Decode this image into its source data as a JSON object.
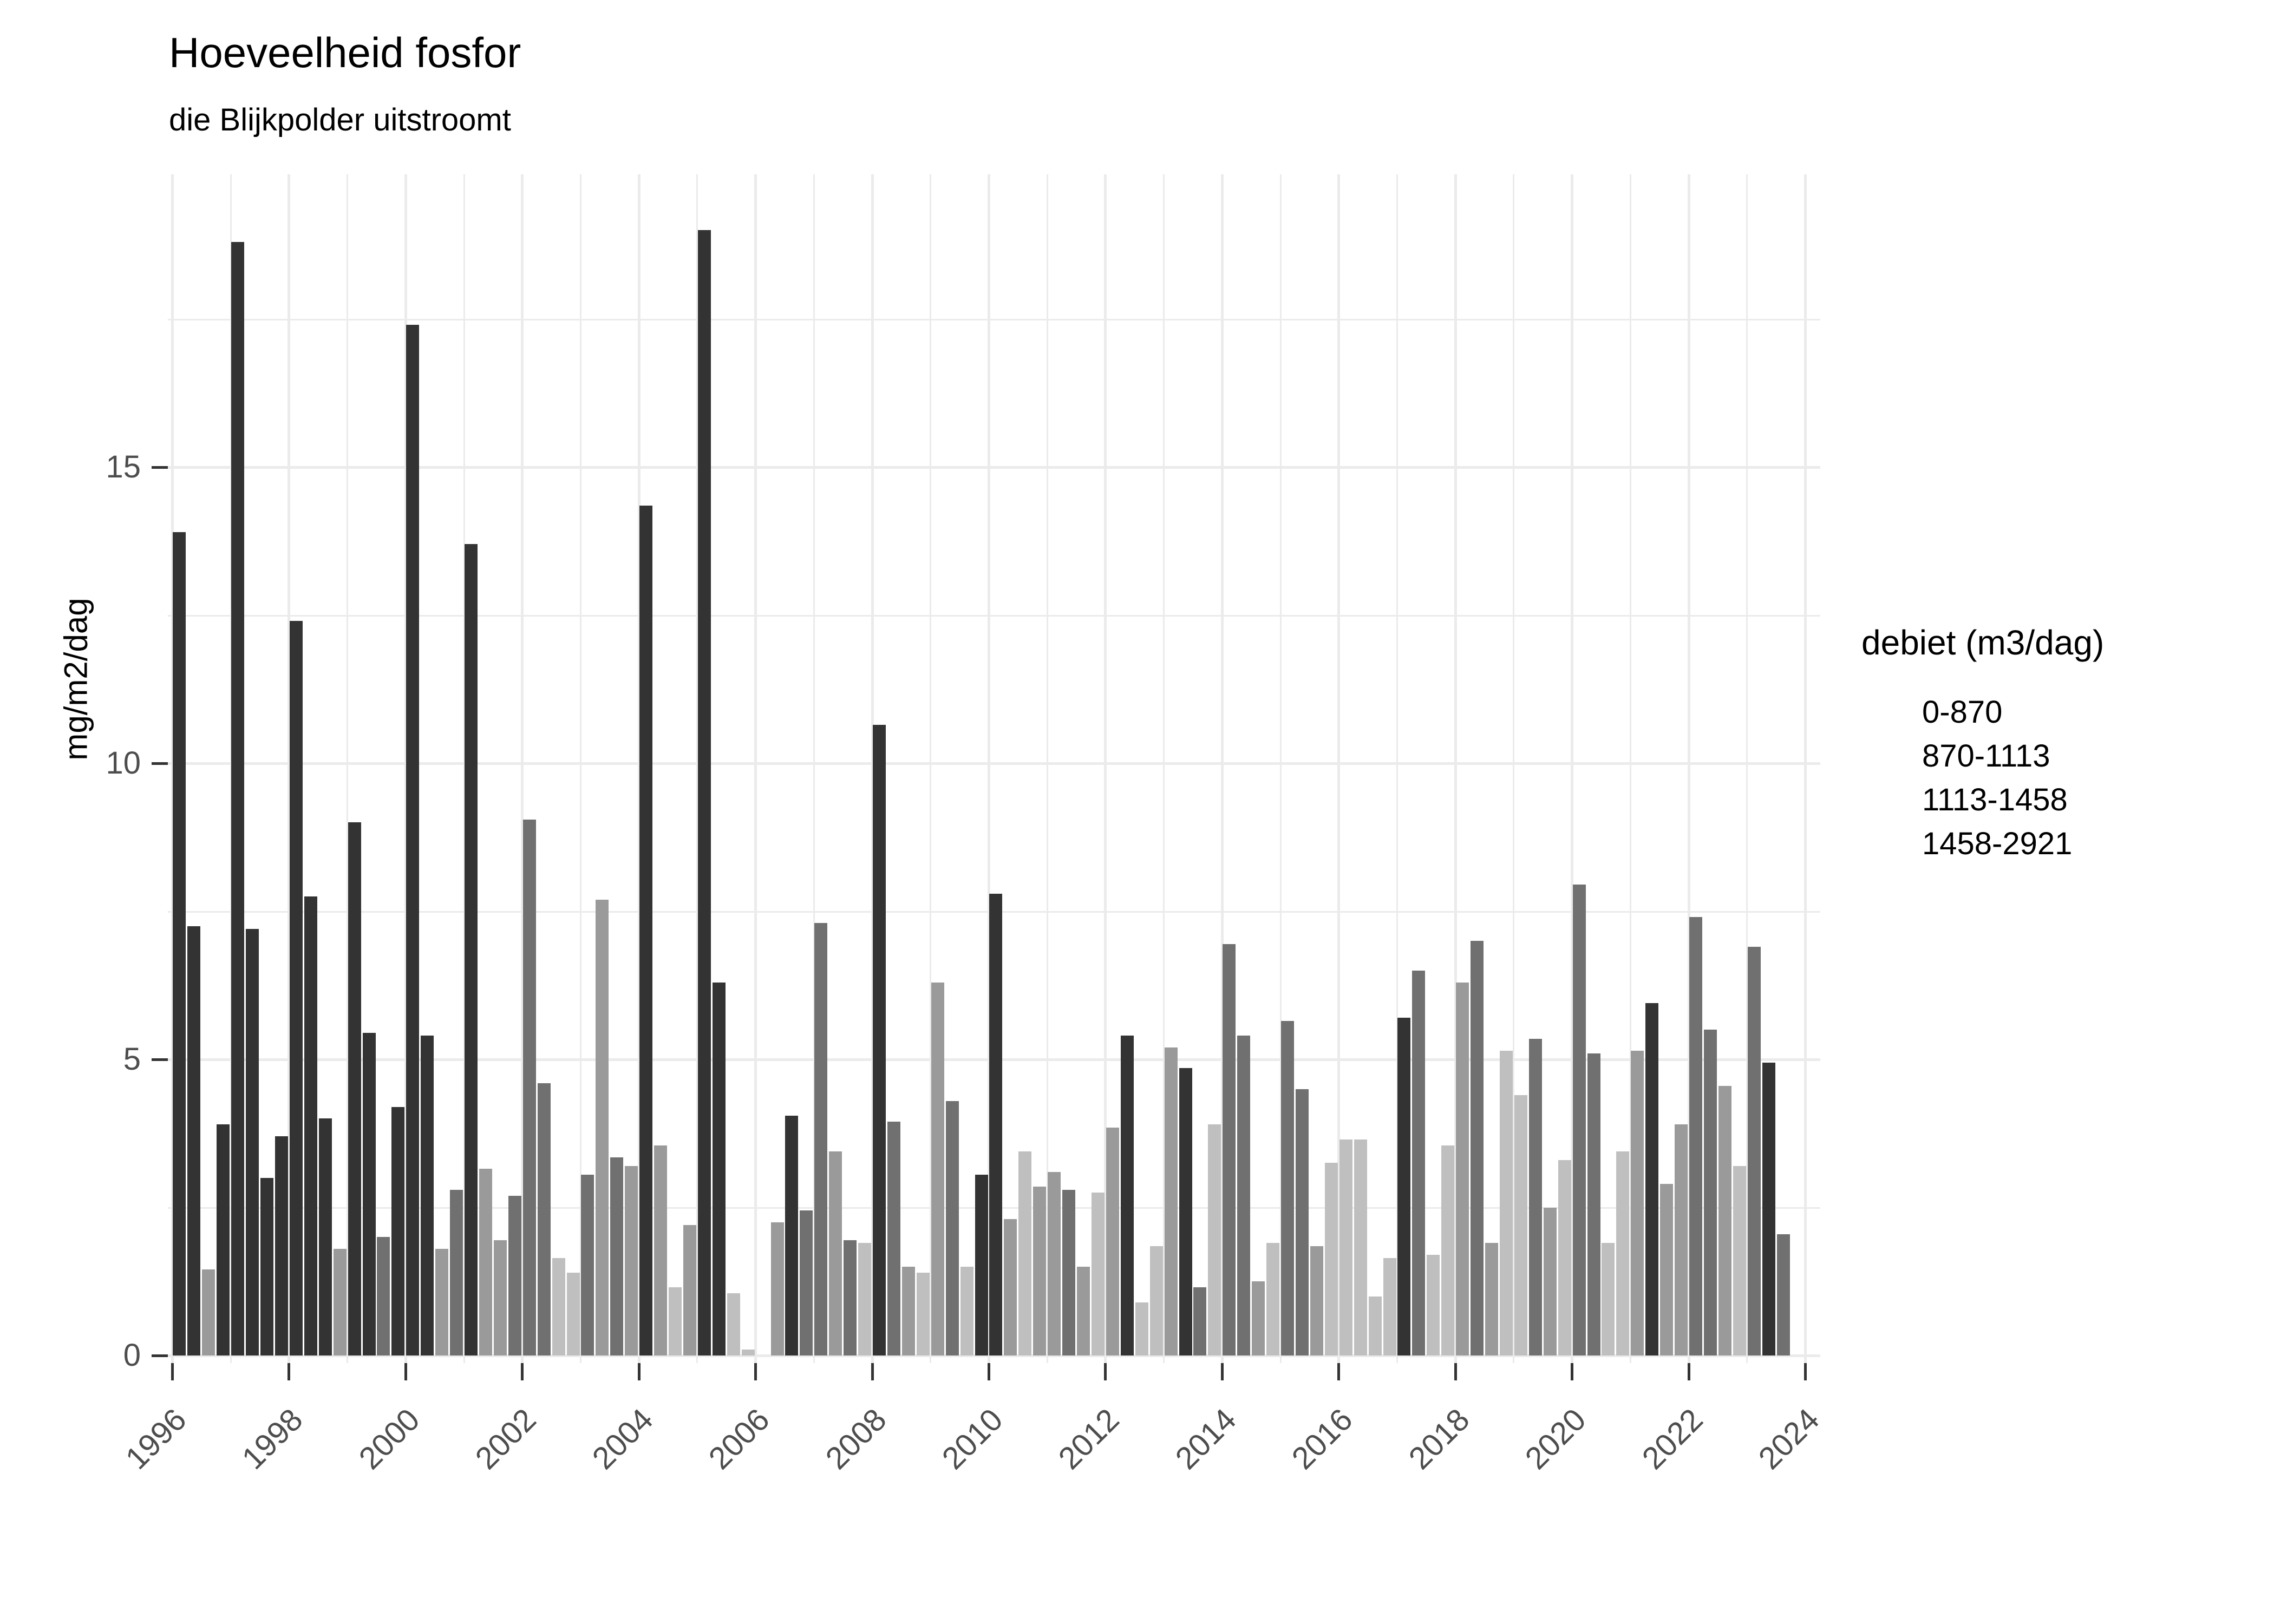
{
  "chart_data": {
    "type": "bar",
    "title": "Hoeveelheid fosfor",
    "subtitle": "die Blijkpolder uitstroomt",
    "ylabel": "mg/m2/dag",
    "xlabel": "",
    "ylim": [
      0,
      19.9
    ],
    "yticks": [
      0,
      5,
      10,
      15
    ],
    "yticks_minor": [
      2.5,
      7.5,
      12.5,
      17.5
    ],
    "xticks": [
      1996,
      1998,
      2000,
      2002,
      2004,
      2006,
      2008,
      2010,
      2012,
      2014,
      2016,
      2018,
      2020,
      2022,
      2024
    ],
    "grid": "on",
    "legend_position": "right",
    "legend": {
      "title": "debiet (m3/dag)",
      "entries": [
        {
          "label": "0-870",
          "color": "#bfbfbf"
        },
        {
          "label": "870-1113",
          "color": "#9a9a9a"
        },
        {
          "label": "1113-1458",
          "color": "#707070"
        },
        {
          "label": "1458-2921",
          "color": "#333333"
        }
      ]
    },
    "note": "grouped quarterly bars per year; c = index into legend entries (debiet class); null = no bar",
    "years": [
      {
        "year": 1996,
        "quarters": [
          {
            "v": 13.9,
            "c": 3
          },
          {
            "v": 7.25,
            "c": 3
          },
          {
            "v": 1.45,
            "c": 1
          },
          {
            "v": 3.9,
            "c": 3
          }
        ]
      },
      {
        "year": 1997,
        "quarters": [
          {
            "v": 18.8,
            "c": 3
          },
          {
            "v": 7.2,
            "c": 3
          },
          {
            "v": 3.0,
            "c": 3
          },
          {
            "v": 3.7,
            "c": 3
          }
        ]
      },
      {
        "year": 1998,
        "quarters": [
          {
            "v": 12.4,
            "c": 3
          },
          {
            "v": 7.75,
            "c": 3
          },
          {
            "v": 4.0,
            "c": 3
          },
          {
            "v": 1.8,
            "c": 1
          }
        ]
      },
      {
        "year": 1999,
        "quarters": [
          {
            "v": 9.0,
            "c": 3
          },
          {
            "v": 5.45,
            "c": 3
          },
          {
            "v": 2.0,
            "c": 2
          },
          {
            "v": 4.2,
            "c": 3
          }
        ]
      },
      {
        "year": 2000,
        "quarters": [
          {
            "v": 17.4,
            "c": 3
          },
          {
            "v": 5.4,
            "c": 3
          },
          {
            "v": 1.8,
            "c": 1
          },
          {
            "v": 2.8,
            "c": 2
          }
        ]
      },
      {
        "year": 2001,
        "quarters": [
          {
            "v": 13.7,
            "c": 3
          },
          {
            "v": 3.15,
            "c": 1
          },
          {
            "v": 1.95,
            "c": 1
          },
          {
            "v": 2.7,
            "c": 2
          }
        ]
      },
      {
        "year": 2002,
        "quarters": [
          {
            "v": 9.05,
            "c": 2
          },
          {
            "v": 4.6,
            "c": 2
          },
          {
            "v": 1.65,
            "c": 0
          },
          {
            "v": 1.4,
            "c": 0
          }
        ]
      },
      {
        "year": 2003,
        "quarters": [
          {
            "v": 3.05,
            "c": 2
          },
          {
            "v": 7.7,
            "c": 1
          },
          {
            "v": 3.35,
            "c": 2
          },
          {
            "v": 3.2,
            "c": 1
          }
        ]
      },
      {
        "year": 2004,
        "quarters": [
          {
            "v": 14.35,
            "c": 3
          },
          {
            "v": 3.55,
            "c": 1
          },
          {
            "v": 1.15,
            "c": 0
          },
          {
            "v": 2.2,
            "c": 1
          }
        ]
      },
      {
        "year": 2005,
        "quarters": [
          {
            "v": 19.0,
            "c": 3
          },
          {
            "v": 6.3,
            "c": 3
          },
          {
            "v": 1.05,
            "c": 0
          },
          {
            "v": 0.1,
            "c": 0
          }
        ]
      },
      {
        "year": 2006,
        "quarters": [
          null,
          {
            "v": 2.25,
            "c": 1
          },
          {
            "v": 4.05,
            "c": 3
          },
          {
            "v": 2.45,
            "c": 2
          }
        ]
      },
      {
        "year": 2007,
        "quarters": [
          {
            "v": 7.3,
            "c": 2
          },
          {
            "v": 3.45,
            "c": 1
          },
          {
            "v": 1.95,
            "c": 2
          },
          {
            "v": 1.9,
            "c": 0
          }
        ]
      },
      {
        "year": 2008,
        "quarters": [
          {
            "v": 10.65,
            "c": 3
          },
          {
            "v": 3.95,
            "c": 2
          },
          {
            "v": 1.5,
            "c": 1
          },
          {
            "v": 1.4,
            "c": 0
          }
        ]
      },
      {
        "year": 2009,
        "quarters": [
          {
            "v": 6.3,
            "c": 1
          },
          {
            "v": 4.3,
            "c": 2
          },
          {
            "v": 1.5,
            "c": 0
          },
          {
            "v": 3.05,
            "c": 3
          }
        ]
      },
      {
        "year": 2010,
        "quarters": [
          {
            "v": 7.8,
            "c": 3
          },
          {
            "v": 2.3,
            "c": 1
          },
          {
            "v": 3.45,
            "c": 0
          },
          {
            "v": 2.85,
            "c": 1
          }
        ]
      },
      {
        "year": 2011,
        "quarters": [
          {
            "v": 3.1,
            "c": 1
          },
          {
            "v": 2.8,
            "c": 2
          },
          {
            "v": 1.5,
            "c": 1
          },
          {
            "v": 2.75,
            "c": 0
          }
        ]
      },
      {
        "year": 2012,
        "quarters": [
          {
            "v": 3.85,
            "c": 1
          },
          {
            "v": 5.4,
            "c": 3
          },
          {
            "v": 0.9,
            "c": 0
          },
          {
            "v": 1.85,
            "c": 0
          }
        ]
      },
      {
        "year": 2013,
        "quarters": [
          {
            "v": 5.2,
            "c": 1
          },
          {
            "v": 4.85,
            "c": 3
          },
          {
            "v": 1.15,
            "c": 2
          },
          {
            "v": 3.9,
            "c": 0
          }
        ]
      },
      {
        "year": 2014,
        "quarters": [
          {
            "v": 6.95,
            "c": 2
          },
          {
            "v": 5.4,
            "c": 2
          },
          {
            "v": 1.25,
            "c": 1
          },
          {
            "v": 1.9,
            "c": 0
          }
        ]
      },
      {
        "year": 2015,
        "quarters": [
          {
            "v": 5.65,
            "c": 2
          },
          {
            "v": 4.5,
            "c": 2
          },
          {
            "v": 1.85,
            "c": 1
          },
          {
            "v": 3.25,
            "c": 0
          }
        ]
      },
      {
        "year": 2016,
        "quarters": [
          {
            "v": 3.65,
            "c": 0
          },
          {
            "v": 3.65,
            "c": 0
          },
          {
            "v": 1.0,
            "c": 0
          },
          {
            "v": 1.65,
            "c": 0
          }
        ]
      },
      {
        "year": 2017,
        "quarters": [
          {
            "v": 5.7,
            "c": 3
          },
          {
            "v": 6.5,
            "c": 2
          },
          {
            "v": 1.7,
            "c": 0
          },
          {
            "v": 3.55,
            "c": 0
          }
        ]
      },
      {
        "year": 2018,
        "quarters": [
          {
            "v": 6.3,
            "c": 1
          },
          {
            "v": 7.0,
            "c": 2
          },
          {
            "v": 1.9,
            "c": 1
          },
          {
            "v": 5.15,
            "c": 0
          }
        ]
      },
      {
        "year": 2019,
        "quarters": [
          {
            "v": 4.4,
            "c": 0
          },
          {
            "v": 5.35,
            "c": 2
          },
          {
            "v": 2.5,
            "c": 1
          },
          {
            "v": 3.3,
            "c": 0
          }
        ]
      },
      {
        "year": 2020,
        "quarters": [
          {
            "v": 7.95,
            "c": 2
          },
          {
            "v": 5.1,
            "c": 2
          },
          {
            "v": 1.9,
            "c": 0
          },
          {
            "v": 3.45,
            "c": 0
          }
        ]
      },
      {
        "year": 2021,
        "quarters": [
          {
            "v": 5.15,
            "c": 1
          },
          {
            "v": 5.95,
            "c": 3
          },
          {
            "v": 2.9,
            "c": 1
          },
          {
            "v": 3.9,
            "c": 1
          }
        ]
      },
      {
        "year": 2022,
        "quarters": [
          {
            "v": 7.4,
            "c": 2
          },
          {
            "v": 5.5,
            "c": 2
          },
          {
            "v": 4.55,
            "c": 1
          },
          {
            "v": 3.2,
            "c": 0
          }
        ]
      },
      {
        "year": 2023,
        "quarters": [
          {
            "v": 6.9,
            "c": 2
          },
          {
            "v": 4.95,
            "c": 3
          },
          {
            "v": 2.05,
            "c": 2
          },
          null
        ]
      }
    ],
    "axis_text_color": "#4d4d4d",
    "grid_color": "#ebebeb",
    "tick_color": "#333333"
  }
}
